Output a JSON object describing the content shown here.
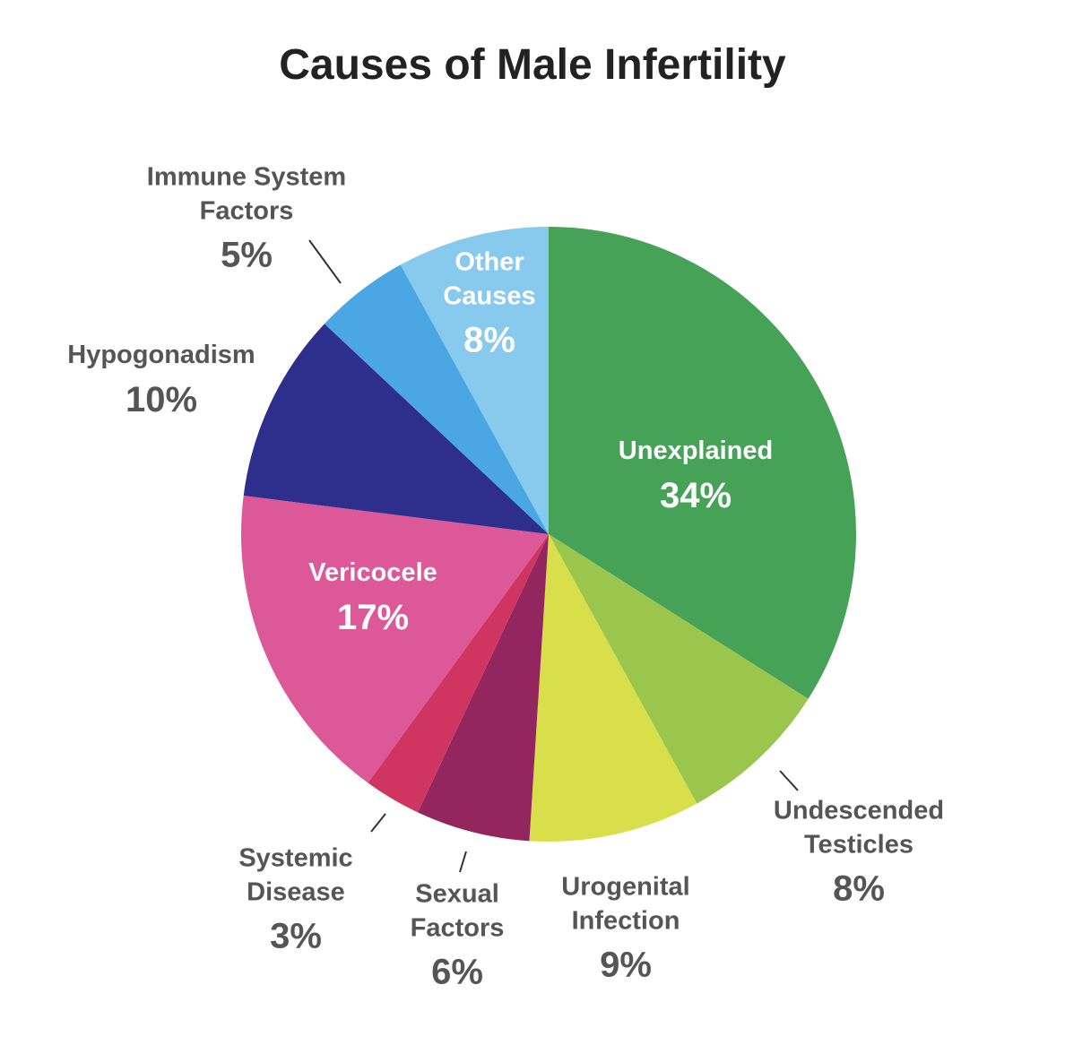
{
  "chart_data": {
    "type": "pie",
    "title": "Causes of Male Infertility",
    "categories": [
      "Unexplained",
      "Undescended Testicles",
      "Urogenital Infection",
      "Sexual Factors",
      "Systemic Disease",
      "Vericocele",
      "Hypogonadism",
      "Immune System Factors",
      "Other Causes"
    ],
    "values": [
      34,
      8,
      9,
      6,
      3,
      17,
      10,
      5,
      8
    ],
    "value_labels": [
      "34%",
      "8%",
      "9%",
      "6%",
      "3%",
      "17%",
      "10%",
      "5%",
      "8%"
    ],
    "colors": [
      "#46a257",
      "#9bc64e",
      "#d9df4a",
      "#93265f",
      "#cf3560",
      "#dd5898",
      "#2e2f8c",
      "#4aa7e3",
      "#88c9ee"
    ]
  }
}
